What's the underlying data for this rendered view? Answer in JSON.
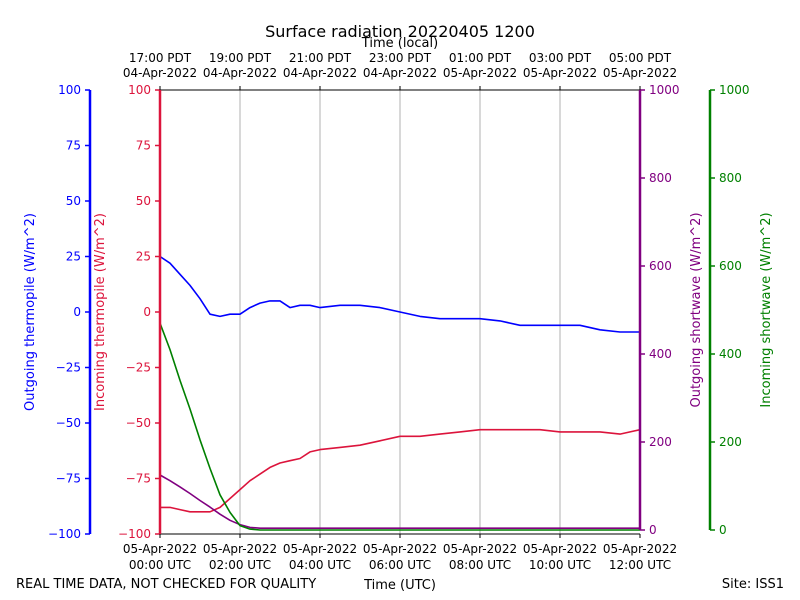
{
  "chart_data": {
    "type": "line",
    "title": "Surface radiation 20220405 1200",
    "top_axis_label": "Time (local)",
    "xlabel": "Time (UTC)",
    "footer_left": "REAL TIME DATA, NOT CHECKED FOR QUALITY",
    "footer_right": "Site: ISS1",
    "x_range_hours": [
      0,
      12
    ],
    "bottom_ticks": [
      {
        "hour": 0,
        "line1": "05-Apr-2022",
        "line2": "00:00 UTC"
      },
      {
        "hour": 2,
        "line1": "05-Apr-2022",
        "line2": "02:00 UTC"
      },
      {
        "hour": 4,
        "line1": "05-Apr-2022",
        "line2": "04:00 UTC"
      },
      {
        "hour": 6,
        "line1": "05-Apr-2022",
        "line2": "06:00 UTC"
      },
      {
        "hour": 8,
        "line1": "05-Apr-2022",
        "line2": "08:00 UTC"
      },
      {
        "hour": 10,
        "line1": "05-Apr-2022",
        "line2": "10:00 UTC"
      },
      {
        "hour": 12,
        "line1": "05-Apr-2022",
        "line2": "12:00 UTC"
      }
    ],
    "top_ticks": [
      {
        "hour": 0,
        "line1": "17:00 PDT",
        "line2": "04-Apr-2022"
      },
      {
        "hour": 2,
        "line1": "19:00 PDT",
        "line2": "04-Apr-2022"
      },
      {
        "hour": 4,
        "line1": "21:00 PDT",
        "line2": "04-Apr-2022"
      },
      {
        "hour": 6,
        "line1": "23:00 PDT",
        "line2": "04-Apr-2022"
      },
      {
        "hour": 8,
        "line1": "01:00 PDT",
        "line2": "05-Apr-2022"
      },
      {
        "hour": 10,
        "line1": "03:00 PDT",
        "line2": "05-Apr-2022"
      },
      {
        "hour": 12,
        "line1": "05:00 PDT",
        "line2": "05-Apr-2022"
      }
    ],
    "axes": [
      {
        "id": "outgoing_thermopile",
        "label": "Outgoing thermopile (W/m^2)",
        "color": "#0000ff",
        "ylim": [
          -100,
          100
        ],
        "ticks": [
          -100,
          -75,
          -50,
          -25,
          0,
          25,
          50,
          75,
          100
        ]
      },
      {
        "id": "incoming_thermopile",
        "label": "Incoming thermopile (W/m^2)",
        "color": "#dc143c",
        "ylim": [
          -100,
          100
        ],
        "ticks": [
          -100,
          -75,
          -50,
          -25,
          0,
          25,
          50,
          75,
          100
        ]
      },
      {
        "id": "outgoing_shortwave",
        "label": "Outgoing shortwave (W/m^2)",
        "color": "#800080",
        "ylim": [
          0,
          1000
        ],
        "ticks": [
          0,
          200,
          400,
          600,
          800,
          1000
        ]
      },
      {
        "id": "incoming_shortwave",
        "label": "Incoming shortwave (W/m^2)",
        "color": "#008000",
        "ylim": [
          0,
          1000
        ],
        "ticks": [
          0,
          200,
          400,
          600,
          800,
          1000
        ]
      }
    ],
    "series": [
      {
        "name": "Outgoing thermopile",
        "axis": "outgoing_thermopile",
        "color": "#0000ff",
        "x": [
          0,
          0.25,
          0.5,
          0.75,
          1.0,
          1.25,
          1.5,
          1.75,
          2.0,
          2.25,
          2.5,
          2.75,
          3.0,
          3.25,
          3.5,
          3.75,
          4.0,
          4.5,
          5.0,
          5.5,
          6.0,
          6.5,
          7.0,
          7.5,
          8.0,
          8.5,
          9.0,
          9.5,
          10.0,
          10.5,
          11.0,
          11.5,
          12.0
        ],
        "y": [
          25,
          22,
          17,
          12,
          6,
          -1,
          -2,
          -1,
          -1,
          2,
          4,
          5,
          5,
          2,
          3,
          3,
          2,
          3,
          3,
          2,
          0,
          -2,
          -3,
          -3,
          -3,
          -4,
          -6,
          -6,
          -6,
          -6,
          -8,
          -9,
          -9
        ]
      },
      {
        "name": "Incoming thermopile",
        "axis": "incoming_thermopile",
        "color": "#dc143c",
        "x": [
          0,
          0.25,
          0.5,
          0.75,
          1.0,
          1.25,
          1.5,
          1.75,
          2.0,
          2.25,
          2.5,
          2.75,
          3.0,
          3.25,
          3.5,
          3.75,
          4.0,
          4.5,
          5.0,
          5.5,
          6.0,
          6.5,
          7.0,
          7.5,
          8.0,
          8.5,
          9.0,
          9.5,
          10.0,
          10.5,
          11.0,
          11.5,
          12.0
        ],
        "y": [
          -88,
          -88,
          -89,
          -90,
          -90,
          -90,
          -88,
          -84,
          -80,
          -76,
          -73,
          -70,
          -68,
          -67,
          -66,
          -63,
          -62,
          -61,
          -60,
          -58,
          -56,
          -56,
          -55,
          -54,
          -53,
          -53,
          -53,
          -53,
          -54,
          -54,
          -54,
          -55,
          -53
        ]
      },
      {
        "name": "Outgoing shortwave",
        "axis": "outgoing_shortwave",
        "color": "#800080",
        "x": [
          0,
          0.25,
          0.5,
          0.75,
          1.0,
          1.25,
          1.5,
          1.75,
          2.0,
          2.25,
          2.5,
          3.0,
          4.0,
          5.0,
          6.0,
          7.0,
          8.0,
          9.0,
          10.0,
          11.0,
          12.0
        ],
        "y": [
          125,
          112,
          98,
          83,
          67,
          52,
          36,
          22,
          12,
          6,
          4,
          4,
          4,
          4,
          4,
          4,
          4,
          4,
          4,
          4,
          4
        ]
      },
      {
        "name": "Incoming shortwave",
        "axis": "incoming_shortwave",
        "color": "#008000",
        "x": [
          0,
          0.25,
          0.5,
          0.75,
          1.0,
          1.25,
          1.5,
          1.75,
          2.0,
          2.25,
          2.5,
          2.75,
          3.0,
          4.0,
          5.0,
          6.0,
          7.0,
          8.0,
          9.0,
          10.0,
          11.0,
          12.0
        ],
        "y": [
          470,
          410,
          340,
          275,
          205,
          140,
          80,
          40,
          10,
          2,
          0,
          0,
          0,
          0,
          0,
          0,
          0,
          0,
          0,
          0,
          0,
          0
        ]
      }
    ]
  }
}
